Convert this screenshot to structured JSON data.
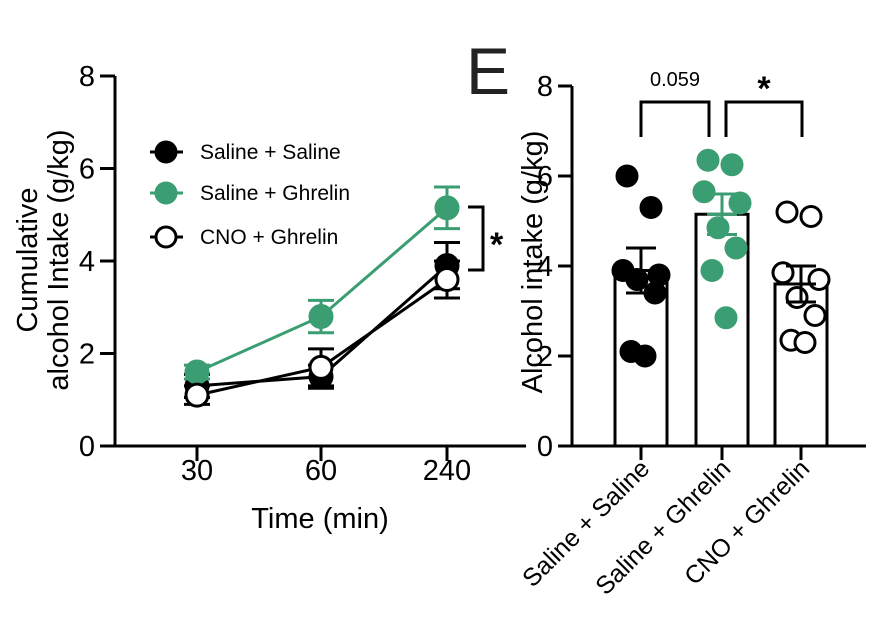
{
  "colors": {
    "saline_saline": "#000000",
    "saline_ghrelin": "#3a9e72",
    "cno_ghrelin": "#ffffff",
    "axis": "#000000"
  },
  "chart_data": [
    {
      "type": "line",
      "x_categories": [
        "30",
        "60",
        "240"
      ],
      "xlabel": "Time (min)",
      "ylabel_line1": "Cumulative",
      "ylabel_line2": "alcohol Intake (g/kg)",
      "ylim": [
        0,
        8
      ],
      "yticks": [
        "0",
        "2",
        "4",
        "6",
        "8"
      ],
      "legend_position": "top-left",
      "series": [
        {
          "name": "Saline + Saline",
          "marker": "filled-black",
          "values": [
            1.3,
            1.5,
            3.9
          ],
          "errors": [
            0.25,
            0.25,
            0.5
          ]
        },
        {
          "name": "Saline + Ghrelin",
          "marker": "filled-green",
          "values": [
            1.6,
            2.8,
            5.15
          ],
          "errors": [
            0.15,
            0.35,
            0.45
          ]
        },
        {
          "name": "CNO + Ghrelin",
          "marker": "open",
          "values": [
            1.1,
            1.7,
            3.6
          ],
          "errors": [
            0.2,
            0.4,
            0.4
          ]
        }
      ],
      "significance": {
        "label": "*",
        "between": [
          "Saline + Ghrelin",
          "CNO + Ghrelin"
        ],
        "at": "240"
      }
    },
    {
      "type": "bar",
      "panel_label": "E",
      "categories": [
        "Saline + Saline",
        "Saline + Ghrelin",
        "CNO + Ghrelin"
      ],
      "ylabel": "Alcohol intake (g/kg)",
      "ylim": [
        0,
        8
      ],
      "yticks": [
        "0",
        "2",
        "4",
        "6",
        "8"
      ],
      "means": [
        3.9,
        5.15,
        3.6
      ],
      "errors": [
        0.5,
        0.45,
        0.4
      ],
      "points": [
        [
          6.0,
          5.3,
          3.9,
          3.8,
          3.7,
          3.4,
          2.1,
          2.0
        ],
        [
          6.35,
          6.25,
          5.65,
          5.4,
          4.85,
          4.4,
          3.9,
          2.85
        ],
        [
          5.2,
          5.1,
          3.85,
          3.7,
          3.3,
          2.9,
          2.35,
          2.3
        ]
      ],
      "comparisons": [
        {
          "between": [
            "Saline + Saline",
            "Saline + Ghrelin"
          ],
          "label": "0.059"
        },
        {
          "between": [
            "Saline + Ghrelin",
            "CNO + Ghrelin"
          ],
          "label": "*"
        }
      ]
    }
  ]
}
